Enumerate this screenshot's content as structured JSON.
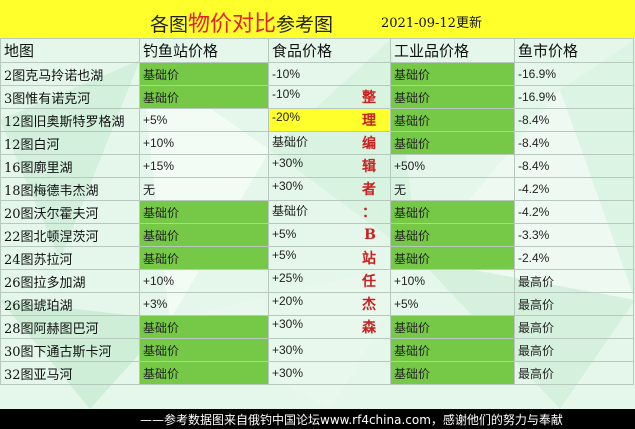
{
  "title": {
    "pre": "各图",
    "highlight": "物价对比",
    "post": "参考图",
    "date": "2021-09-12更新"
  },
  "headers": [
    "地图",
    "钓鱼站价格",
    "食品价格",
    "工业品价格",
    "鱼市价格"
  ],
  "rows": [
    [
      "2图克马拎诺也湖",
      "基础价",
      "-10%",
      "基础价",
      "-16.9%"
    ],
    [
      "3图惟有诺克河",
      "基础价",
      "-10%",
      "基础价",
      "-16.9%"
    ],
    [
      "12图旧奥斯特罗格湖",
      "+5%",
      "-20%",
      "基础价",
      "-8.4%"
    ],
    [
      "12图白河",
      "+10%",
      "基础价",
      "基础价",
      "-8.4%"
    ],
    [
      "16图廓里湖",
      "+15%",
      "+30%",
      "+50%",
      "-8.4%"
    ],
    [
      "18图梅德韦杰湖",
      "无",
      "+30%",
      "无",
      "-4.2%"
    ],
    [
      "20图沃尔霍夫河",
      "基础价",
      "基础价",
      "基础价",
      "-4.2%"
    ],
    [
      "22图北顿涅茨河",
      "基础价",
      "+5%",
      "基础价",
      "-3.3%"
    ],
    [
      "24图苏拉河",
      "基础价",
      "+5%",
      "基础价",
      "-2.4%"
    ],
    [
      "26图拉多加湖",
      "+10%",
      "+25%",
      "+10%",
      "最高价"
    ],
    [
      "26图琥珀湖",
      "+3%",
      "+20%",
      "+5%",
      "最高价"
    ],
    [
      "28图阿赫图巴河",
      "基础价",
      "+30%",
      "基础价",
      "最高价"
    ],
    [
      "30图下通古斯卡河",
      "基础价",
      "+30%",
      "基础价",
      "最高价"
    ],
    [
      "32图亚马河",
      "基础价",
      "+30%",
      "基础价",
      "最高价"
    ]
  ],
  "vertical_text": [
    "",
    "整",
    "理",
    "编",
    "辑",
    "者",
    "：",
    "B",
    "站",
    "任",
    "杰",
    "森",
    "",
    ""
  ],
  "footer": "——参考数据图来自俄钓中国论坛www.rf4china.com，感谢他们的努力与奉献"
}
